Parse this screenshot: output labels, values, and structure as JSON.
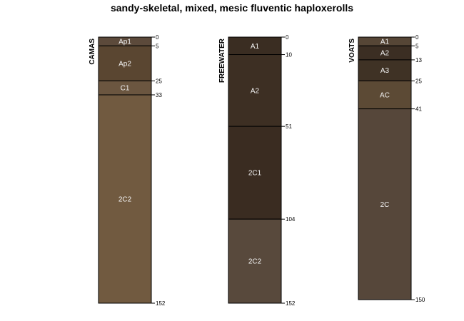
{
  "title": "sandy-skeletal, mixed, mesic fluventic haploxerolls",
  "profiles": [
    {
      "name": "CAMAS",
      "bottom": 152,
      "horizons": [
        {
          "name": "Ap1",
          "top": 0,
          "bottom": 5,
          "color": "#5c4a3b"
        },
        {
          "name": "Ap2",
          "top": 5,
          "bottom": 25,
          "color": "#5a4631"
        },
        {
          "name": "C1",
          "top": 25,
          "bottom": 33,
          "color": "#6b5640"
        },
        {
          "name": "2C2",
          "top": 33,
          "bottom": 152,
          "color": "#715a40"
        }
      ],
      "depth_labels": [
        "0",
        "5",
        "25",
        "33",
        "152"
      ]
    },
    {
      "name": "FREEWATER",
      "bottom": 152,
      "horizons": [
        {
          "name": "A1",
          "top": 0,
          "bottom": 10,
          "color": "#3a2d22"
        },
        {
          "name": "A2",
          "top": 10,
          "bottom": 51,
          "color": "#3d2f23"
        },
        {
          "name": "2C1",
          "top": 51,
          "bottom": 104,
          "color": "#3a2c21"
        },
        {
          "name": "2C2",
          "top": 104,
          "bottom": 152,
          "color": "#58493c"
        }
      ],
      "depth_labels": [
        "0",
        "10",
        "51",
        "104",
        "152"
      ]
    },
    {
      "name": "VOATS",
      "bottom": 150,
      "horizons": [
        {
          "name": "A1",
          "top": 0,
          "bottom": 5,
          "color": "#564636"
        },
        {
          "name": "A2",
          "top": 5,
          "bottom": 13,
          "color": "#3b2e23"
        },
        {
          "name": "A3",
          "top": 13,
          "bottom": 25,
          "color": "#3f3225"
        },
        {
          "name": "AC",
          "top": 25,
          "bottom": 41,
          "color": "#5c4a35"
        },
        {
          "name": "2C",
          "top": 41,
          "bottom": 150,
          "color": "#56473a"
        }
      ],
      "depth_labels": [
        "0",
        "5",
        "13",
        "25",
        "41",
        "150"
      ]
    }
  ]
}
